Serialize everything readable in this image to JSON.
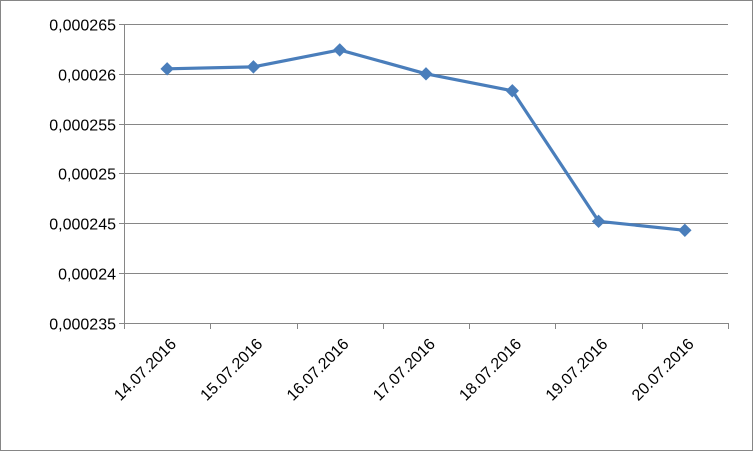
{
  "chart_data": {
    "type": "line",
    "title": "",
    "xlabel": "",
    "ylabel": "",
    "categories": [
      "14.07.2016",
      "15.07.2016",
      "16.07.2016",
      "17.07.2016",
      "18.07.2016",
      "19.07.2016",
      "20.07.2016"
    ],
    "series": [
      {
        "values": [
          0.0002605,
          0.0002607,
          0.0002624,
          0.00026,
          0.0002583,
          0.0002452,
          0.0002443
        ],
        "color": "#4a7ebb",
        "marker": "diamond"
      }
    ],
    "ylim": [
      0.000235,
      0.000265
    ],
    "yticks": [
      0.000235,
      0.00024,
      0.000245,
      0.00025,
      0.000255,
      0.00026,
      0.000265
    ],
    "ytick_labels": [
      "0,000235",
      "0,00024",
      "0,000245",
      "0,00025",
      "0,000255",
      "0,00026",
      "0,000265"
    ],
    "grid": true,
    "legend": "none"
  }
}
